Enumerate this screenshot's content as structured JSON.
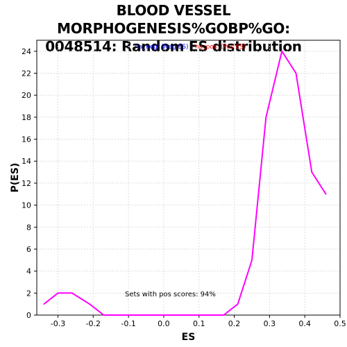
{
  "chart_data": {
    "type": "line",
    "title_line1": "BLOOD VESSEL MORPHOGENESIS%GOBP%GO:",
    "title_line2": "0048514: Random ES distribution",
    "xlabel": "ES",
    "ylabel": "P(ES)",
    "xlim": [
      -0.36,
      0.5
    ],
    "ylim": [
      0,
      25
    ],
    "x_ticks": [
      -0.3,
      -0.2,
      -0.1,
      0.0,
      0.1,
      0.2,
      0.3,
      0.4,
      0.5
    ],
    "x_tick_labels": [
      "-0.3",
      "-0.2",
      "-0.1",
      "0.0",
      "0.1",
      "0.2",
      "0.3",
      "0.4",
      "0.5"
    ],
    "y_ticks": [
      0,
      2,
      4,
      6,
      8,
      10,
      12,
      14,
      16,
      18,
      20,
      22,
      24
    ],
    "y_tick_labels": [
      "0",
      "2",
      "4",
      "6",
      "8",
      "10",
      "12",
      "14",
      "16",
      "18",
      "20",
      "22",
      "24"
    ],
    "grid": true,
    "legend": [
      {
        "label": "'na_neg' (Neg ES)",
        "color": "#0000ff"
      },
      {
        "label": "'na_pos' (Pos ES)",
        "color": "#ff0000"
      }
    ],
    "legend_placement": "top-center",
    "annotation": "Sets with pos scores: 94%",
    "series": [
      {
        "color": "#ff00ff",
        "x": [
          -0.34,
          -0.3,
          -0.26,
          -0.21,
          -0.17,
          -0.13,
          -0.09,
          -0.04,
          0.0,
          0.04,
          0.08,
          0.12,
          0.17,
          0.21,
          0.25,
          0.29,
          0.335,
          0.375,
          0.42,
          0.46
        ],
        "y": [
          1,
          2,
          2,
          1,
          0,
          0,
          0,
          0,
          0,
          0,
          0,
          0,
          0,
          1,
          5,
          18,
          24,
          22,
          13,
          11
        ]
      }
    ]
  }
}
